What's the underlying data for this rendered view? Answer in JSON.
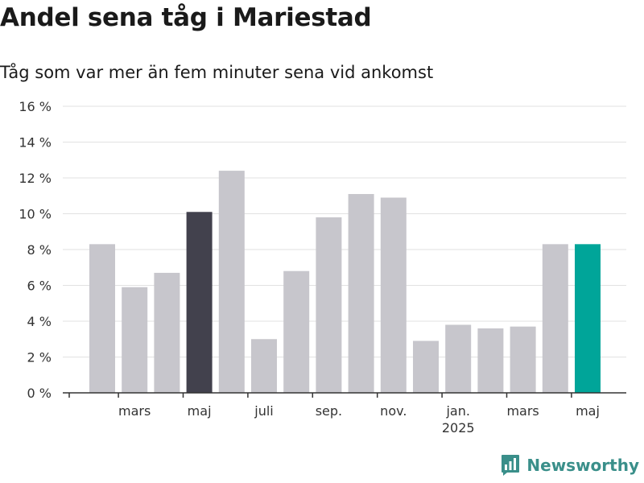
{
  "header": {
    "title": "Andel sena tåg i Mariestad",
    "subtitle": "Tåg som var mer än fem minuter sena vid ankomst"
  },
  "brand": {
    "name": "Newsworthy",
    "color": "#3a8f8a",
    "icon": "newsworthy-logo-icon"
  },
  "colors": {
    "default_bar": "#c7c6cc",
    "highlight_bar": "#42414d",
    "latest_bar": "#00a599",
    "grid": "#e2e2e2",
    "axis": "#333333"
  },
  "chart_data": {
    "type": "bar",
    "title": "Andel sena tåg i Mariestad",
    "subtitle": "Tåg som var mer än fem minuter sena vid ankomst",
    "y_unit": "%",
    "ylim": [
      0,
      16
    ],
    "y_ticks": [
      0,
      2,
      4,
      6,
      8,
      10,
      12,
      14,
      16
    ],
    "y_tick_labels": [
      "0 %",
      "2 %",
      "4 %",
      "6 %",
      "8 %",
      "10 %",
      "12 %",
      "14 %",
      "16 %"
    ],
    "grid": true,
    "categories": [
      "2024-02",
      "2024-03",
      "2024-04",
      "2024-05",
      "2024-06",
      "2024-07",
      "2024-08",
      "2024-09",
      "2024-10",
      "2024-11",
      "2024-12",
      "2025-01",
      "2025-02",
      "2025-03",
      "2025-04",
      "2025-05"
    ],
    "values": [
      8.3,
      5.9,
      6.7,
      10.1,
      12.4,
      3.0,
      6.8,
      9.8,
      11.1,
      10.9,
      2.9,
      3.8,
      3.6,
      3.7,
      8.3,
      8.3
    ],
    "highlight": {
      "2024-05": "highlight_bar",
      "2025-05": "latest_bar"
    },
    "x_tick_labels": [
      {
        "at": "2024-03",
        "label": "mars"
      },
      {
        "at": "2024-05",
        "label": "maj"
      },
      {
        "at": "2024-07",
        "label": "juli"
      },
      {
        "at": "2024-09",
        "label": "sep."
      },
      {
        "at": "2024-11",
        "label": "nov."
      },
      {
        "at": "2025-01",
        "label": "jan.",
        "sublabel": "2025"
      },
      {
        "at": "2025-03",
        "label": "mars"
      },
      {
        "at": "2025-05",
        "label": "maj"
      }
    ]
  }
}
